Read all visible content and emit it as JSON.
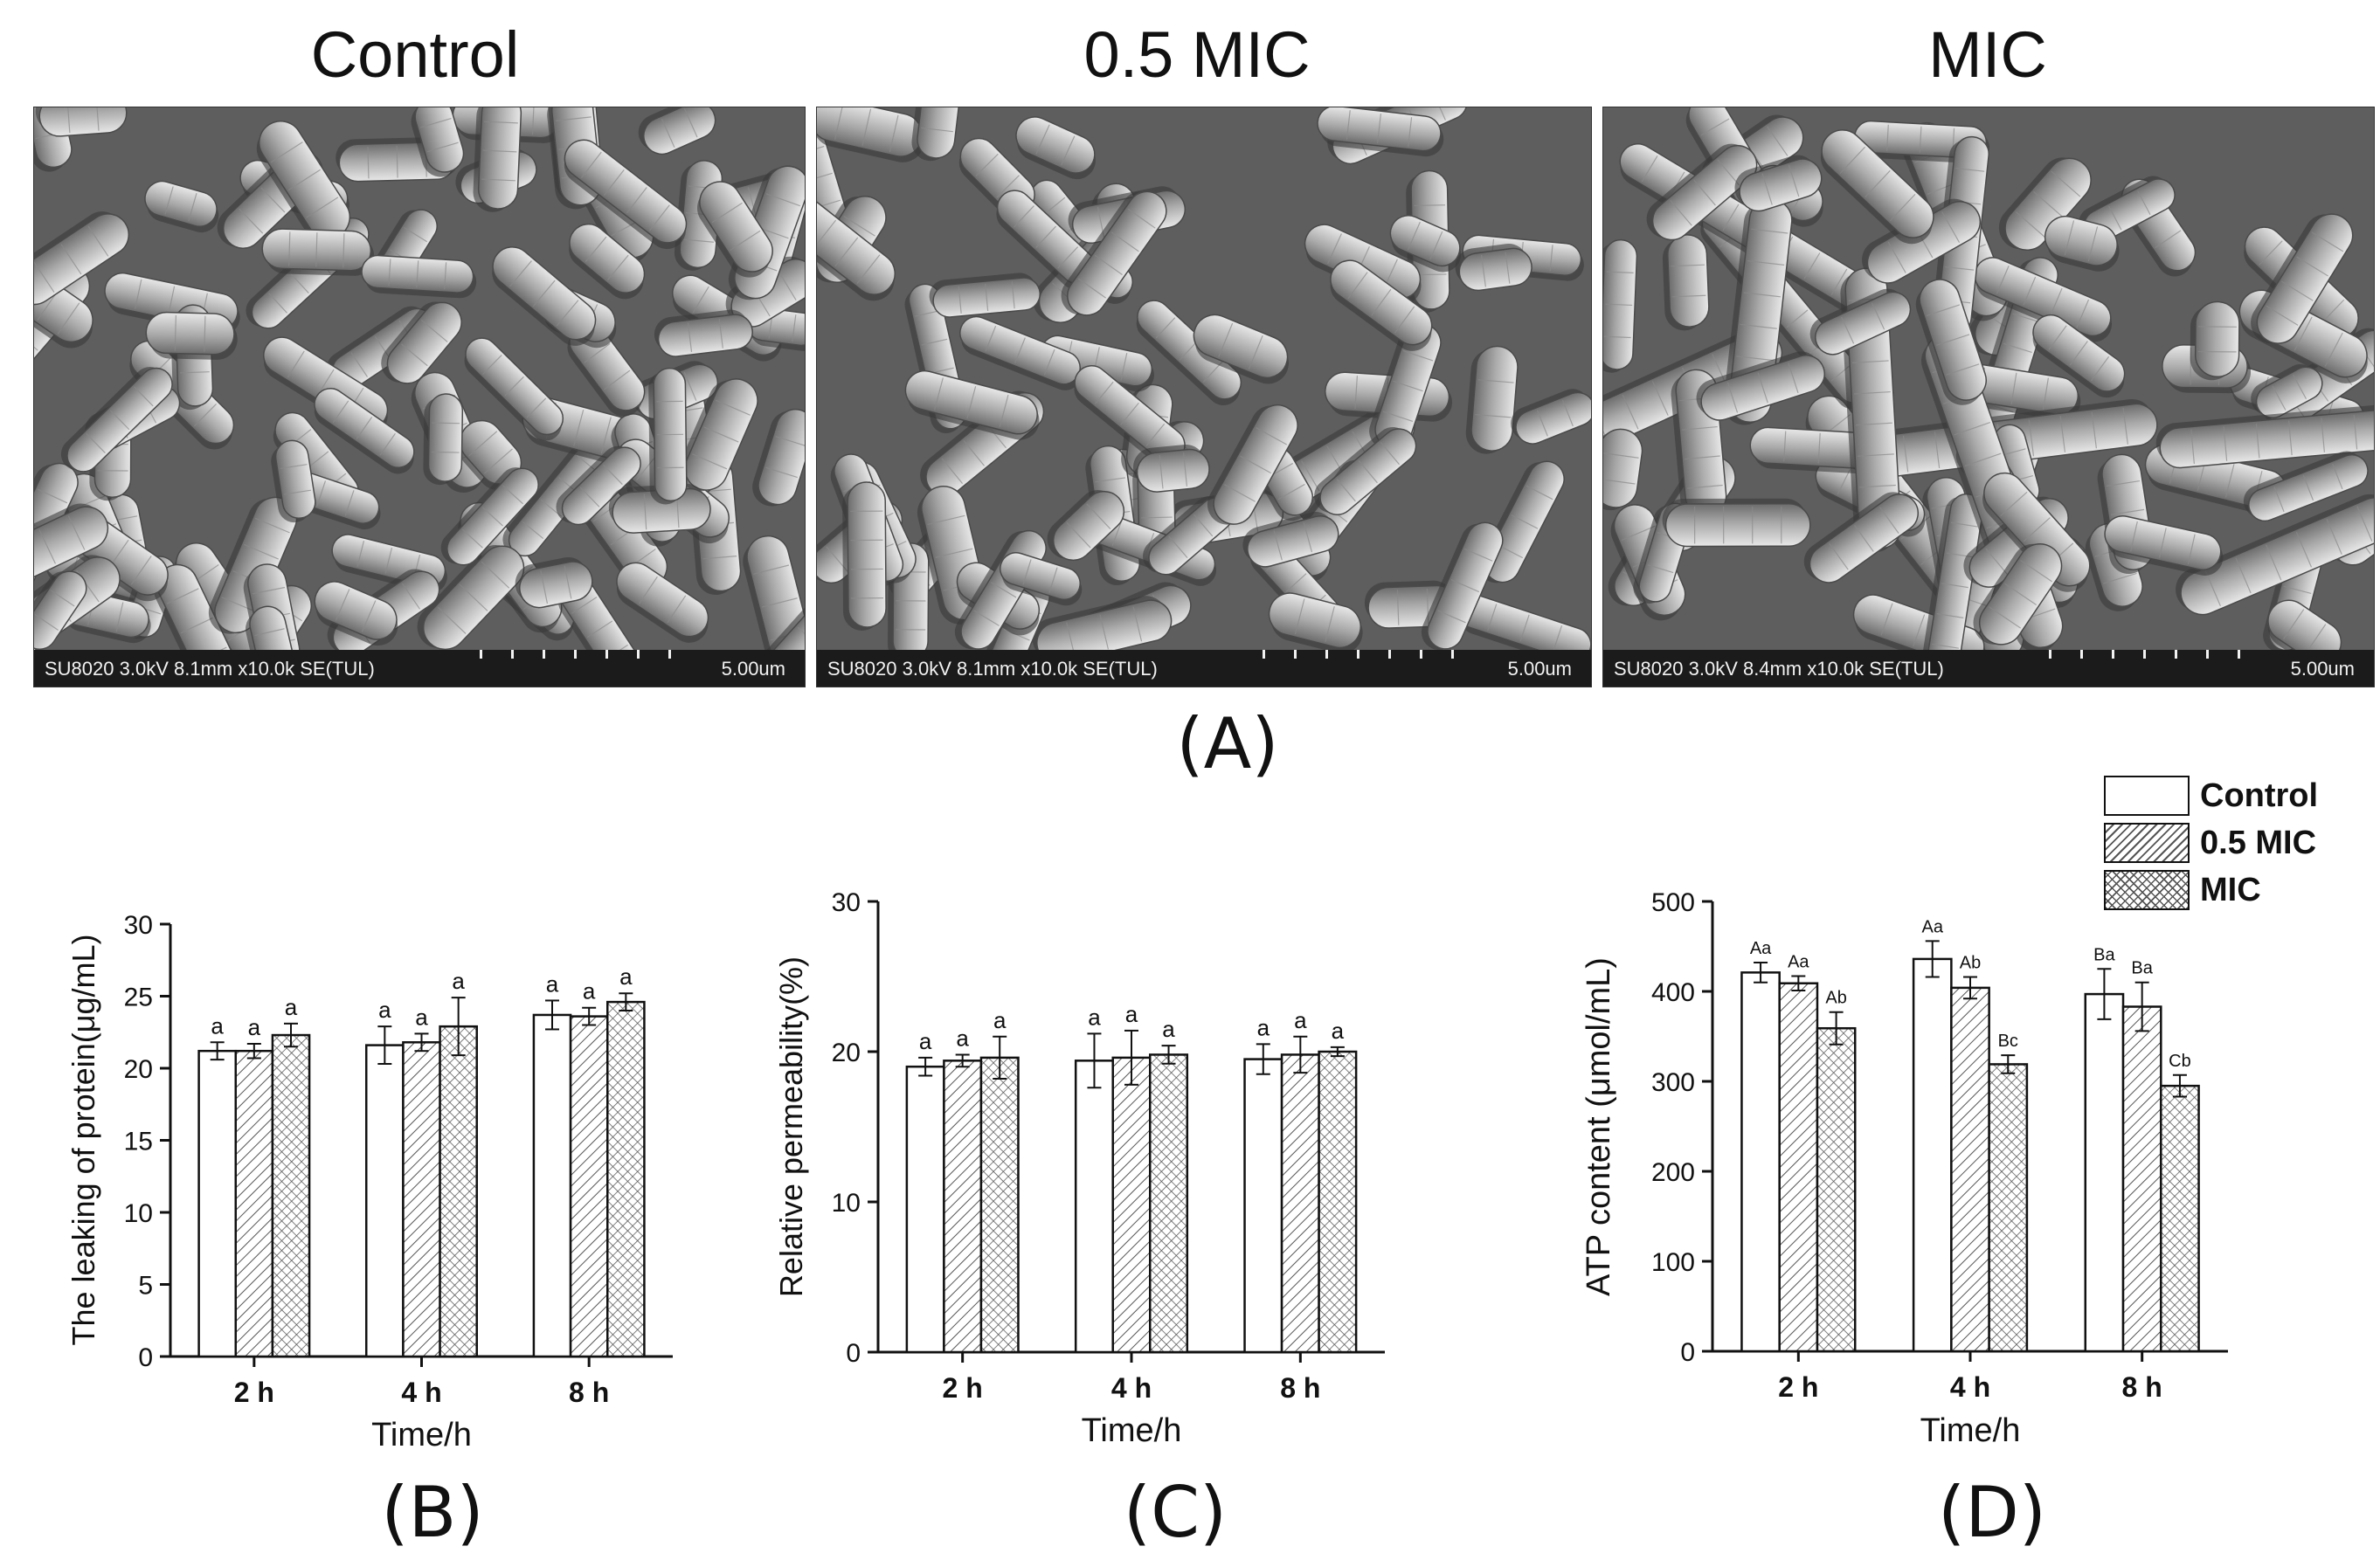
{
  "sem": {
    "panels": [
      {
        "title": "Control",
        "meta": "SU8020 3.0kV 8.1mm x10.0k SE(TUL)",
        "scale": "5.00um"
      },
      {
        "title": "0.5 MIC",
        "meta": "SU8020 3.0kV 8.1mm x10.0k SE(TUL)",
        "scale": "5.00um"
      },
      {
        "title": "MIC",
        "meta": "SU8020 3.0kV 8.4mm x10.0k SE(TUL)",
        "scale": "5.00um"
      }
    ],
    "label": "(A)"
  },
  "legend": {
    "items": [
      "Control",
      "0.5 MIC",
      "MIC"
    ]
  },
  "colors": {
    "bar_outline": "#111111",
    "hatch": "#555555",
    "sem_background": "#5f5f5f"
  },
  "chart_data": [
    {
      "type": "bar",
      "label": "(B)",
      "categories": [
        "2 h",
        "4 h",
        "8 h"
      ],
      "xlabel": "Time/h",
      "ylabel": "The leaking of protein(μg/mL)",
      "ylim": [
        0,
        30
      ],
      "yticks": [
        0,
        5,
        10,
        15,
        20,
        25,
        30
      ],
      "series": [
        {
          "name": "Control",
          "values": [
            21.2,
            21.6,
            23.7
          ],
          "errors": [
            0.6,
            1.3,
            1.0
          ],
          "letters": [
            "a",
            "a",
            "a"
          ]
        },
        {
          "name": "0.5 MIC",
          "values": [
            21.2,
            21.8,
            23.6
          ],
          "errors": [
            0.5,
            0.6,
            0.6
          ],
          "letters": [
            "a",
            "a",
            "a"
          ]
        },
        {
          "name": "MIC",
          "values": [
            22.3,
            22.9,
            24.6
          ],
          "errors": [
            0.8,
            2.0,
            0.6
          ],
          "letters": [
            "a",
            "a",
            "a"
          ]
        }
      ]
    },
    {
      "type": "bar",
      "label": "(C)",
      "categories": [
        "2 h",
        "4 h",
        "8 h"
      ],
      "xlabel": "Time/h",
      "ylabel": "Relative permeability(%)",
      "ylim": [
        0,
        30
      ],
      "yticks": [
        0,
        10,
        20,
        30
      ],
      "series": [
        {
          "name": "Control",
          "values": [
            19.0,
            19.4,
            19.5
          ],
          "errors": [
            0.6,
            1.8,
            1.0
          ],
          "letters": [
            "a",
            "a",
            "a"
          ]
        },
        {
          "name": "0.5 MIC",
          "values": [
            19.4,
            19.6,
            19.8
          ],
          "errors": [
            0.4,
            1.8,
            1.2
          ],
          "letters": [
            "a",
            "a",
            "a"
          ]
        },
        {
          "name": "MIC",
          "values": [
            19.6,
            19.8,
            20.0
          ],
          "errors": [
            1.4,
            0.6,
            0.3
          ],
          "letters": [
            "a",
            "a",
            "a"
          ]
        }
      ]
    },
    {
      "type": "bar",
      "label": "(D)",
      "categories": [
        "2 h",
        "4 h",
        "8 h"
      ],
      "xlabel": "Time/h",
      "ylabel": "ATP content (μmol/mL)",
      "ylim": [
        0,
        500
      ],
      "yticks": [
        0,
        100,
        200,
        300,
        400,
        500
      ],
      "series": [
        {
          "name": "Control",
          "values": [
            421,
            436,
            397
          ],
          "errors": [
            11,
            20,
            28
          ],
          "letters": [
            "Aa",
            "Aa",
            "Ba"
          ]
        },
        {
          "name": "0.5 MIC",
          "values": [
            409,
            404,
            383
          ],
          "errors": [
            8,
            12,
            27
          ],
          "letters": [
            "Aa",
            "Ab",
            "Ba"
          ]
        },
        {
          "name": "MIC",
          "values": [
            359,
            319,
            295
          ],
          "errors": [
            18,
            10,
            12
          ],
          "letters": [
            "Ab",
            "Bc",
            "Cb"
          ]
        }
      ]
    }
  ]
}
